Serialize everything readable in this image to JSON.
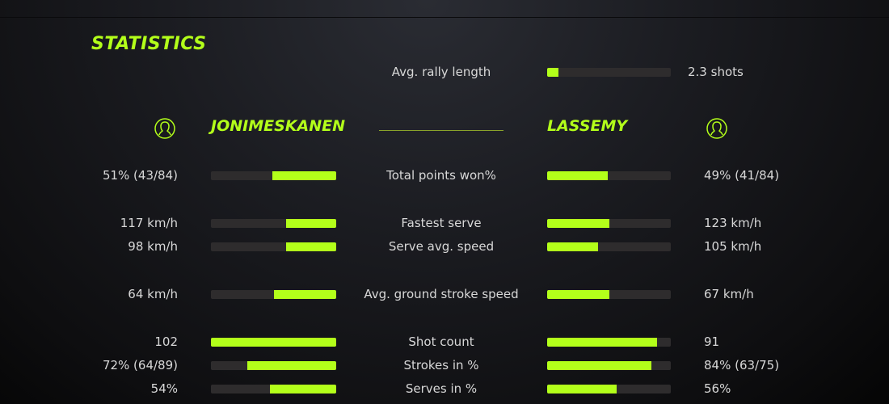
{
  "title": "STATISTICS",
  "accent_color": "#b3ff1a",
  "track_color": "#2e2c2d",
  "rally": {
    "label": "Avg. rally length",
    "value": "2.3 shots",
    "fill": 0.09
  },
  "players": {
    "left": {
      "name": "JONIMESKANEN",
      "icon": "user-icon"
    },
    "right": {
      "name": "LASSEMY",
      "icon": "user-icon"
    }
  },
  "stats": [
    {
      "label": "Total points won%",
      "left": "51% (43/84)",
      "right": "49% (41/84)",
      "left_fill": 0.51,
      "right_fill": 0.49
    },
    {
      "label": "Fastest serve",
      "left": "117 km/h",
      "right": "123 km/h",
      "left_fill": 0.4,
      "right_fill": 0.5
    },
    {
      "label": "Serve avg. speed",
      "left": "98 km/h",
      "right": "105 km/h",
      "left_fill": 0.4,
      "right_fill": 0.41
    },
    {
      "label": "Avg. ground stroke speed",
      "left": "64 km/h",
      "right": "67 km/h",
      "left_fill": 0.5,
      "right_fill": 0.5
    },
    {
      "label": "Shot count",
      "left": "102",
      "right": "91",
      "left_fill": 1.0,
      "right_fill": 0.89
    },
    {
      "label": "Strokes in %",
      "left": "72% (64/89)",
      "right": "84% (63/75)",
      "left_fill": 0.71,
      "right_fill": 0.84
    },
    {
      "label": "Serves in %",
      "left": "54%",
      "right": "56%",
      "left_fill": 0.53,
      "right_fill": 0.56
    }
  ]
}
